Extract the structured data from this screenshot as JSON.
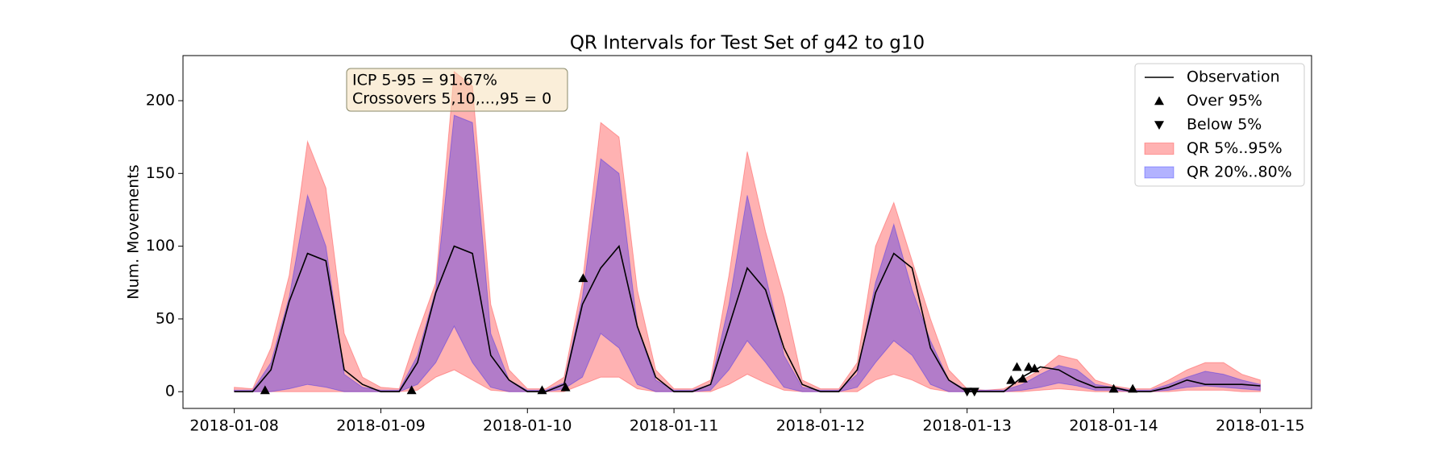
{
  "chart_data": {
    "type": "line",
    "title": "QR Intervals for Test Set of g42 to g10",
    "ylabel": "Num. Movements",
    "x": [
      0,
      0.125,
      0.25,
      0.375,
      0.5,
      0.625,
      0.75,
      0.875,
      1,
      1.125,
      1.25,
      1.375,
      1.5,
      1.625,
      1.75,
      1.875,
      2,
      2.125,
      2.25,
      2.375,
      2.5,
      2.625,
      2.75,
      2.875,
      3,
      3.125,
      3.25,
      3.375,
      3.5,
      3.625,
      3.75,
      3.875,
      4,
      4.125,
      4.25,
      4.375,
      4.5,
      4.625,
      4.75,
      4.875,
      5,
      5.125,
      5.25,
      5.375,
      5.5,
      5.625,
      5.75,
      5.875,
      6,
      6.125,
      6.25,
      6.375,
      6.5,
      6.625,
      6.75,
      6.875,
      7
    ],
    "xlim": [
      -0.35,
      7.35
    ],
    "xticks": [
      {
        "value": 0,
        "label": "2018-01-08"
      },
      {
        "value": 1,
        "label": "2018-01-09"
      },
      {
        "value": 2,
        "label": "2018-01-10"
      },
      {
        "value": 3,
        "label": "2018-01-11"
      },
      {
        "value": 4,
        "label": "2018-01-12"
      },
      {
        "value": 5,
        "label": "2018-01-13"
      },
      {
        "value": 6,
        "label": "2018-01-14"
      },
      {
        "value": 7,
        "label": "2018-01-15"
      }
    ],
    "ylim": [
      -11.5,
      231
    ],
    "yticks": [
      0,
      50,
      100,
      150,
      200
    ],
    "bands": [
      {
        "name": "QR 5%..95%",
        "color": "#ff0000",
        "alpha": 0.3,
        "lower": [
          0,
          0,
          0,
          0,
          0,
          0,
          0,
          0,
          0,
          0,
          1,
          10,
          15,
          8,
          1,
          0,
          0,
          0,
          0,
          5,
          10,
          10,
          2,
          0,
          0,
          0,
          0,
          5,
          12,
          6,
          1,
          0,
          0,
          0,
          0,
          8,
          12,
          8,
          2,
          0,
          0,
          0,
          0,
          0,
          1,
          2,
          1,
          0,
          0,
          0,
          0,
          0,
          1,
          1,
          1,
          0,
          0
        ],
        "upper": [
          3,
          2,
          30,
          80,
          172,
          140,
          40,
          10,
          3,
          2,
          40,
          75,
          220,
          210,
          60,
          15,
          2,
          2,
          10,
          75,
          185,
          175,
          70,
          15,
          2,
          2,
          8,
          80,
          165,
          110,
          65,
          8,
          2,
          2,
          20,
          100,
          130,
          90,
          50,
          15,
          2,
          1,
          2,
          8,
          15,
          25,
          22,
          8,
          4,
          2,
          2,
          8,
          15,
          20,
          20,
          12,
          8
        ]
      },
      {
        "name": "QR 20%..80%",
        "color": "#0000ff",
        "alpha": 0.3,
        "lower": [
          0,
          0,
          0,
          2,
          5,
          3,
          0,
          0,
          0,
          0,
          5,
          20,
          45,
          20,
          3,
          0,
          0,
          0,
          2,
          10,
          40,
          30,
          5,
          0,
          0,
          0,
          1,
          15,
          35,
          20,
          3,
          0,
          0,
          0,
          3,
          20,
          35,
          25,
          5,
          0,
          0,
          0,
          0,
          1,
          3,
          6,
          4,
          1,
          1,
          0,
          0,
          1,
          3,
          4,
          3,
          2,
          1
        ],
        "upper": [
          1,
          1,
          20,
          65,
          135,
          100,
          12,
          3,
          1,
          1,
          25,
          70,
          190,
          185,
          40,
          8,
          1,
          1,
          6,
          65,
          160,
          150,
          45,
          8,
          1,
          1,
          5,
          60,
          135,
          80,
          25,
          3,
          1,
          1,
          12,
          75,
          115,
          70,
          35,
          8,
          1,
          1,
          1,
          5,
          12,
          18,
          15,
          5,
          3,
          1,
          1,
          5,
          10,
          14,
          12,
          8,
          5
        ]
      }
    ],
    "series": [
      {
        "name": "Observation",
        "color": "#000000",
        "values": [
          0,
          0,
          15,
          62,
          95,
          90,
          15,
          5,
          0,
          0,
          20,
          68,
          100,
          95,
          25,
          8,
          0,
          0,
          5,
          60,
          85,
          100,
          45,
          10,
          0,
          0,
          5,
          45,
          85,
          70,
          30,
          5,
          0,
          0,
          15,
          68,
          95,
          85,
          30,
          8,
          0,
          0,
          0,
          10,
          17,
          15,
          8,
          3,
          3,
          0,
          0,
          3,
          8,
          5,
          5,
          5,
          4
        ]
      }
    ],
    "markers": [
      {
        "name": "Over 95%",
        "marker": "up",
        "color": "#000000",
        "x": [
          0.21,
          1.21,
          2.1,
          2.26,
          2.38,
          5.3,
          5.34,
          5.38,
          5.42,
          5.46,
          6.0,
          6.13
        ],
        "values": [
          1,
          1,
          1,
          3,
          78,
          8,
          17,
          9,
          17,
          16,
          2,
          2
        ]
      },
      {
        "name": "Below 5%",
        "marker": "down",
        "color": "#000000",
        "x": [
          5.0,
          5.05
        ],
        "values": [
          0,
          0
        ]
      }
    ],
    "annotation": [
      "ICP 5-95 = 91.67%",
      "Crossovers 5,10,...,95 = 0"
    ],
    "legend": "upper right"
  }
}
